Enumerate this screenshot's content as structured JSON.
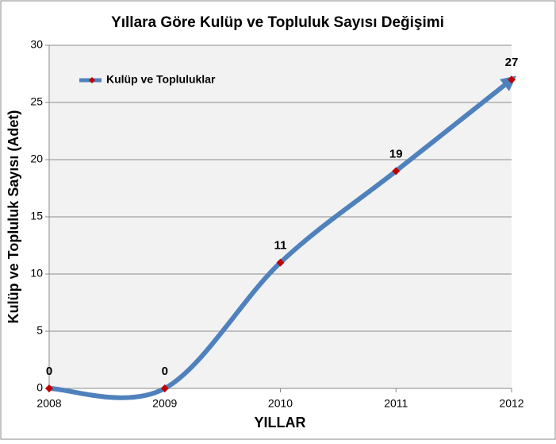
{
  "chart_data": {
    "type": "line",
    "title": "Yıllara Göre Kulüp ve Topluluk Sayısı Değişimi",
    "x_label": "YILLAR",
    "y_label": "Kulüp ve Topluluk Sayısı (Adet)",
    "x": [
      2008,
      2009,
      2010,
      2011,
      2012
    ],
    "series": [
      {
        "name": "Kulüp ve Topluluklar",
        "color": "#4f81bd",
        "marker_color": "#c00000",
        "values": [
          0,
          0,
          11,
          19,
          27
        ]
      }
    ],
    "xlim": [
      2008,
      2012
    ],
    "xticks": [
      2008,
      2009,
      2010,
      2011,
      2012
    ],
    "ylim": [
      0,
      30
    ],
    "yticks": [
      0,
      5,
      10,
      15,
      20,
      25,
      30
    ],
    "grid": true,
    "legend": "top-left",
    "smooth": true
  }
}
